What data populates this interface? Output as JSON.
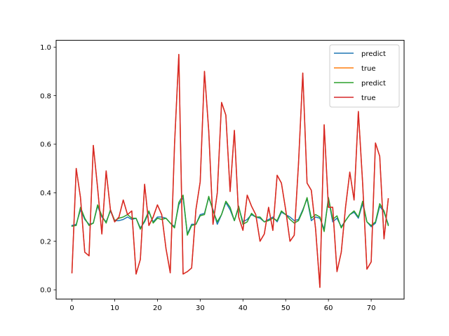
{
  "chart_data": {
    "type": "line",
    "title": "",
    "xlabel": "",
    "ylabel": "",
    "xlim": [
      -3.7,
      77.7
    ],
    "ylim": [
      -0.038,
      1.028
    ],
    "xticks": [
      0,
      10,
      20,
      30,
      40,
      50,
      60,
      70
    ],
    "yticks": [
      0.0,
      0.2,
      0.4,
      0.6,
      0.8,
      1.0
    ],
    "xtick_labels": [
      "0",
      "10",
      "20",
      "30",
      "40",
      "50",
      "60",
      "70"
    ],
    "ytick_labels": [
      "0.0",
      "0.2",
      "0.4",
      "0.6",
      "0.8",
      "1.0"
    ],
    "grid": false,
    "legend_position": "top-right",
    "x": [
      0,
      1,
      2,
      3,
      4,
      5,
      6,
      7,
      8,
      9,
      10,
      11,
      12,
      13,
      14,
      15,
      16,
      17,
      18,
      19,
      20,
      21,
      22,
      23,
      24,
      25,
      26,
      27,
      28,
      29,
      30,
      31,
      32,
      33,
      34,
      35,
      36,
      37,
      38,
      39,
      40,
      41,
      42,
      43,
      44,
      45,
      46,
      47,
      48,
      49,
      50,
      51,
      52,
      53,
      54,
      55,
      56,
      57,
      58,
      59,
      60,
      61,
      62,
      63,
      64,
      65,
      66,
      67,
      68,
      69,
      70,
      71,
      72,
      73,
      74
    ],
    "series": [
      {
        "name": "predict",
        "color": "#1f77b4",
        "values": [
          0.265,
          0.27,
          0.33,
          0.29,
          0.27,
          0.275,
          0.345,
          0.3,
          0.28,
          0.325,
          0.285,
          0.285,
          0.29,
          0.3,
          0.29,
          0.295,
          0.255,
          0.28,
          0.32,
          0.28,
          0.3,
          0.3,
          0.295,
          0.275,
          0.26,
          0.35,
          0.38,
          0.23,
          0.27,
          0.27,
          0.31,
          0.315,
          0.38,
          0.33,
          0.27,
          0.31,
          0.36,
          0.33,
          0.285,
          0.34,
          0.28,
          0.29,
          0.31,
          0.3,
          0.295,
          0.28,
          0.29,
          0.3,
          0.28,
          0.32,
          0.31,
          0.3,
          0.285,
          0.29,
          0.33,
          0.375,
          0.285,
          0.3,
          0.295,
          0.25,
          0.375,
          0.28,
          0.295,
          0.26,
          0.285,
          0.31,
          0.32,
          0.295,
          0.355,
          0.28,
          0.26,
          0.275,
          0.345,
          0.32,
          0.27
        ]
      },
      {
        "name": "true",
        "color": "#ff7f0e",
        "values": [
          0.07,
          0.5,
          0.38,
          0.155,
          0.14,
          0.595,
          0.42,
          0.23,
          0.49,
          0.33,
          0.28,
          0.3,
          0.37,
          0.31,
          0.325,
          0.065,
          0.125,
          0.435,
          0.265,
          0.3,
          0.35,
          0.31,
          0.17,
          0.07,
          0.6,
          0.97,
          0.065,
          0.075,
          0.09,
          0.33,
          0.445,
          0.9,
          0.655,
          0.27,
          0.4,
          0.772,
          0.72,
          0.405,
          0.657,
          0.3,
          0.245,
          0.39,
          0.345,
          0.31,
          0.2,
          0.23,
          0.34,
          0.245,
          0.472,
          0.44,
          0.33,
          0.2,
          0.225,
          0.52,
          0.893,
          0.44,
          0.41,
          0.25,
          0.01,
          0.68,
          0.34,
          0.34,
          0.075,
          0.155,
          0.34,
          0.485,
          0.37,
          0.735,
          0.44,
          0.085,
          0.115,
          0.605,
          0.55,
          0.21,
          0.375
        ]
      },
      {
        "name": "predict",
        "color": "#2ca02c",
        "values": [
          0.262,
          0.265,
          0.34,
          0.295,
          0.265,
          0.275,
          0.35,
          0.305,
          0.275,
          0.33,
          0.285,
          0.295,
          0.3,
          0.31,
          0.295,
          0.295,
          0.25,
          0.285,
          0.325,
          0.275,
          0.295,
          0.29,
          0.295,
          0.275,
          0.255,
          0.36,
          0.39,
          0.225,
          0.265,
          0.27,
          0.305,
          0.31,
          0.385,
          0.325,
          0.28,
          0.31,
          0.365,
          0.34,
          0.285,
          0.345,
          0.27,
          0.28,
          0.315,
          0.3,
          0.3,
          0.28,
          0.285,
          0.295,
          0.285,
          0.325,
          0.31,
          0.29,
          0.275,
          0.285,
          0.325,
          0.38,
          0.295,
          0.31,
          0.3,
          0.24,
          0.38,
          0.29,
          0.305,
          0.255,
          0.285,
          0.31,
          0.325,
          0.3,
          0.365,
          0.28,
          0.265,
          0.28,
          0.355,
          0.325,
          0.265
        ]
      },
      {
        "name": "true",
        "color": "#d62728",
        "values": [
          0.07,
          0.5,
          0.38,
          0.155,
          0.14,
          0.595,
          0.42,
          0.23,
          0.49,
          0.33,
          0.28,
          0.3,
          0.37,
          0.31,
          0.325,
          0.065,
          0.125,
          0.435,
          0.265,
          0.3,
          0.35,
          0.31,
          0.17,
          0.07,
          0.6,
          0.97,
          0.065,
          0.075,
          0.09,
          0.33,
          0.445,
          0.9,
          0.655,
          0.27,
          0.4,
          0.772,
          0.72,
          0.405,
          0.657,
          0.3,
          0.245,
          0.39,
          0.345,
          0.31,
          0.2,
          0.23,
          0.34,
          0.245,
          0.472,
          0.44,
          0.33,
          0.2,
          0.225,
          0.52,
          0.893,
          0.44,
          0.41,
          0.25,
          0.01,
          0.68,
          0.34,
          0.34,
          0.075,
          0.155,
          0.34,
          0.485,
          0.37,
          0.735,
          0.44,
          0.085,
          0.115,
          0.605,
          0.55,
          0.21,
          0.375
        ]
      }
    ]
  }
}
